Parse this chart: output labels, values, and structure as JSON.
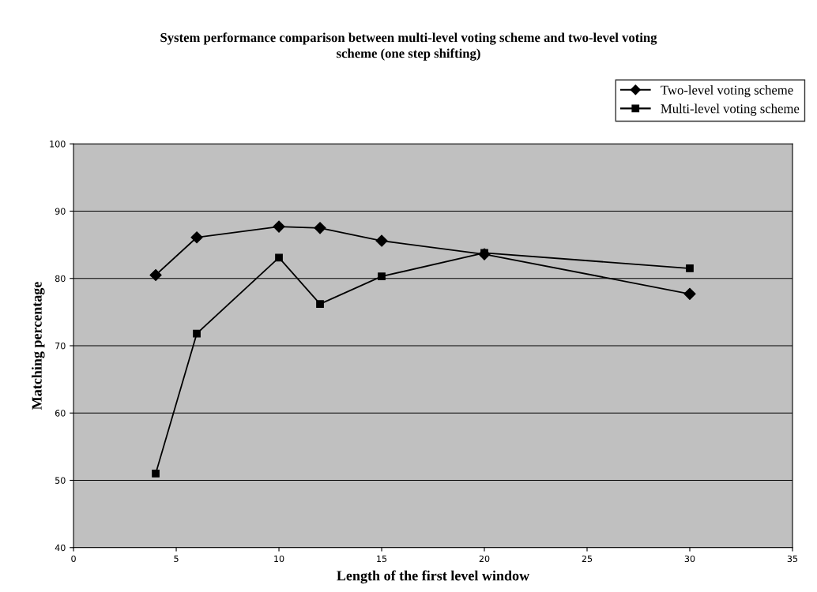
{
  "chart_data": {
    "type": "line",
    "title": "System performance comparison between multi-level voting scheme and two-level voting\nscheme (one step shifting)",
    "xlabel": "Length of the first level window",
    "ylabel": "Matching percentage",
    "x": [
      4,
      6,
      10,
      12,
      15,
      20,
      30
    ],
    "series": [
      {
        "name": "Two-level voting scheme",
        "color": "#000000",
        "marker": "diamond",
        "values": [
          80.5,
          86.1,
          87.7,
          87.5,
          85.6,
          83.6,
          77.7
        ]
      },
      {
        "name": "Multi-level voting scheme",
        "color": "#000000",
        "marker": "square",
        "values": [
          51,
          71.8,
          83.1,
          76.2,
          80.3,
          83.8,
          81.5
        ]
      }
    ],
    "xlim": [
      0,
      35
    ],
    "xticks": [
      0,
      5,
      10,
      15,
      20,
      25,
      30,
      35
    ],
    "ylim": [
      40,
      100
    ],
    "yticks": [
      40,
      50,
      60,
      70,
      80,
      90,
      100
    ],
    "grid": "y",
    "legend": "top right",
    "line_style": "solid"
  }
}
